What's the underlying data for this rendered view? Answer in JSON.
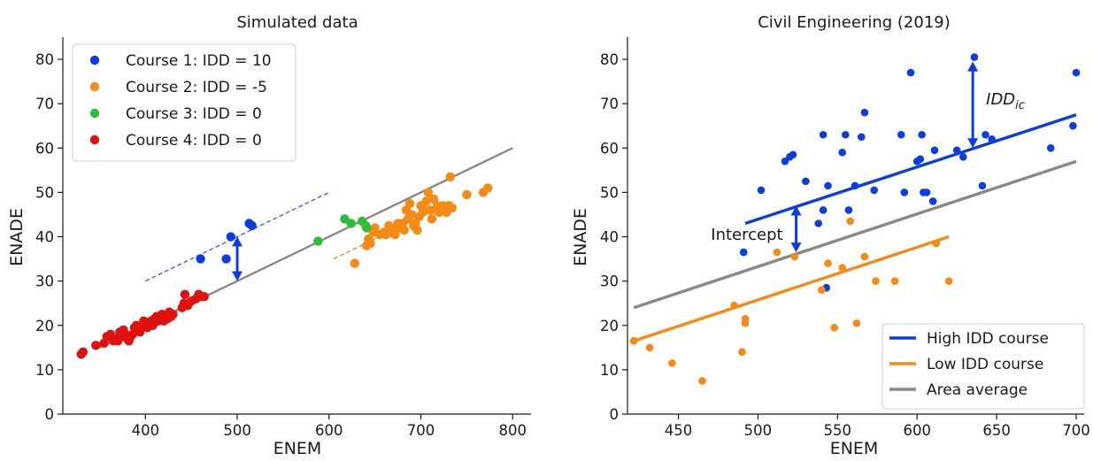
{
  "chart_data": [
    {
      "type": "scatter",
      "title": "Simulated data",
      "xlabel": "ENEM",
      "ylabel": "ENADE",
      "xlim": [
        310,
        820
      ],
      "ylim": [
        0,
        85
      ],
      "xticks": [
        400,
        500,
        600,
        700,
        800
      ],
      "yticks": [
        0,
        10,
        20,
        30,
        40,
        50,
        60,
        70,
        80
      ],
      "grid": false,
      "legend_position": "top-left",
      "series": [
        {
          "name": "Course 1: IDD = 10",
          "color": "#0b3de3",
          "points": [
            [
              460,
              35
            ],
            [
              488,
              35
            ],
            [
              493,
              40
            ],
            [
              513,
              43
            ],
            [
              516,
              42.5
            ]
          ]
        },
        {
          "name": "Course 2: IDD = -5",
          "color": "#f58a14",
          "points": [
            [
              628,
              34
            ],
            [
              641,
              38
            ],
            [
              643,
              39.5
            ],
            [
              645,
              38.5
            ],
            [
              648,
              41
            ],
            [
              650,
              42
            ],
            [
              655,
              40.5
            ],
            [
              660,
              41
            ],
            [
              662,
              40.5
            ],
            [
              665,
              42.5
            ],
            [
              667,
              41
            ],
            [
              670,
              42
            ],
            [
              672,
              40.5
            ],
            [
              675,
              43
            ],
            [
              677,
              42
            ],
            [
              680,
              43
            ],
            [
              682,
              41.5
            ],
            [
              684,
              46
            ],
            [
              686,
              44
            ],
            [
              688,
              47.5
            ],
            [
              690,
              45
            ],
            [
              692,
              42.5
            ],
            [
              694,
              43
            ],
            [
              696,
              41.5
            ],
            [
              698,
              44.5
            ],
            [
              700,
              47
            ],
            [
              702,
              45.5
            ],
            [
              704,
              46
            ],
            [
              706,
              48
            ],
            [
              708,
              50
            ],
            [
              710,
              46
            ],
            [
              712,
              44
            ],
            [
              714,
              48.5
            ],
            [
              716,
              46
            ],
            [
              718,
              47
            ],
            [
              720,
              45.5
            ],
            [
              722,
              46.5
            ],
            [
              724,
              47
            ],
            [
              726,
              46
            ],
            [
              728,
              45.5
            ],
            [
              730,
              47
            ],
            [
              732,
              53.5
            ],
            [
              734,
              46.5
            ],
            [
              750,
              49.5
            ],
            [
              768,
              50
            ],
            [
              773,
              51
            ]
          ]
        },
        {
          "name": "Course 3: IDD = 0",
          "color": "#2bc038",
          "points": [
            [
              588,
              39
            ],
            [
              617,
              44
            ],
            [
              624,
              43
            ],
            [
              636,
              43.5
            ],
            [
              640,
              42.5
            ],
            [
              641,
              42
            ]
          ]
        },
        {
          "name": "Course 4: IDD = 0",
          "color": "#e0110e",
          "points": [
            [
              330,
              13.5
            ],
            [
              332,
              14
            ],
            [
              346,
              15.5
            ],
            [
              355,
              16
            ],
            [
              358,
              17.5
            ],
            [
              362,
              18
            ],
            [
              365,
              16.5
            ],
            [
              368,
              17
            ],
            [
              370,
              16.5
            ],
            [
              372,
              18.5
            ],
            [
              374,
              17.5
            ],
            [
              376,
              19
            ],
            [
              378,
              18
            ],
            [
              380,
              17
            ],
            [
              382,
              16.5
            ],
            [
              384,
              17.5
            ],
            [
              386,
              18
            ],
            [
              388,
              19.5
            ],
            [
              390,
              20
            ],
            [
              392,
              19
            ],
            [
              394,
              18.5
            ],
            [
              396,
              20
            ],
            [
              398,
              21
            ],
            [
              400,
              20
            ],
            [
              402,
              19.5
            ],
            [
              404,
              20.5
            ],
            [
              406,
              21
            ],
            [
              408,
              20
            ],
            [
              410,
              21.5
            ],
            [
              412,
              22
            ],
            [
              414,
              21
            ],
            [
              416,
              21.5
            ],
            [
              418,
              22.5
            ],
            [
              420,
              21
            ],
            [
              422,
              22
            ],
            [
              424,
              21.5
            ],
            [
              426,
              23
            ],
            [
              428,
              22
            ],
            [
              430,
              22.5
            ],
            [
              440,
              24
            ],
            [
              442,
              25
            ],
            [
              443,
              27
            ],
            [
              446,
              24.5
            ],
            [
              450,
              25.5
            ],
            [
              455,
              26
            ],
            [
              458,
              27
            ],
            [
              460,
              26.5
            ],
            [
              464,
              26.5
            ]
          ]
        }
      ],
      "reference_lines": [
        {
          "style": "solid",
          "color": "#888888",
          "from": [
            350,
            15
          ],
          "to": [
            800,
            60
          ]
        },
        {
          "style": "dashed",
          "color": "#3b62f0",
          "from": [
            400,
            30
          ],
          "to": [
            600,
            50
          ]
        },
        {
          "style": "dashed",
          "color": "#f58a14",
          "from": [
            605,
            35
          ],
          "to": [
            735,
            48
          ]
        }
      ],
      "arrows": [
        {
          "color": "#0b3de3",
          "x": 500,
          "y_from": 30,
          "y_to": 40
        }
      ]
    },
    {
      "type": "scatter",
      "title": "Civil Engineering (2019)",
      "xlabel": "ENEM",
      "ylabel": "ENADE",
      "xlim": [
        418,
        705
      ],
      "ylim": [
        0,
        85
      ],
      "xticks": [
        450,
        500,
        550,
        600,
        650,
        700
      ],
      "yticks": [
        0,
        10,
        20,
        30,
        40,
        50,
        60,
        70,
        80
      ],
      "grid": false,
      "legend_position": "bottom-right",
      "series": [
        {
          "name": "High IDD course",
          "color": "#0b3de3",
          "points": [
            [
              491,
              36.5
            ],
            [
              502,
              50.5
            ],
            [
              517,
              57
            ],
            [
              520,
              58
            ],
            [
              522,
              58.5
            ],
            [
              530,
              52.5
            ],
            [
              538,
              43
            ],
            [
              541,
              63
            ],
            [
              541,
              46
            ],
            [
              543,
              28.5
            ],
            [
              544,
              51.5
            ],
            [
              553,
              59
            ],
            [
              555,
              63
            ],
            [
              557,
              46
            ],
            [
              561,
              51.5
            ],
            [
              565,
              62.5
            ],
            [
              567,
              68
            ],
            [
              573,
              50.5
            ],
            [
              590,
              63
            ],
            [
              592,
              50
            ],
            [
              596,
              77
            ],
            [
              600,
              57
            ],
            [
              602,
              57.5
            ],
            [
              603,
              63
            ],
            [
              604,
              50
            ],
            [
              606,
              50
            ],
            [
              610,
              48
            ],
            [
              611,
              59.5
            ],
            [
              625,
              59.5
            ],
            [
              629,
              58
            ],
            [
              636,
              80.5
            ],
            [
              641,
              51.5
            ],
            [
              643,
              63
            ],
            [
              647,
              62
            ],
            [
              684,
              60
            ],
            [
              698,
              65
            ],
            [
              700,
              77
            ]
          ]
        },
        {
          "name": "Low IDD course",
          "color": "#f58a14",
          "points": [
            [
              422,
              16.5
            ],
            [
              432,
              15
            ],
            [
              446,
              11.5
            ],
            [
              465,
              7.5
            ],
            [
              485,
              24.5
            ],
            [
              490,
              14
            ],
            [
              492,
              21.5
            ],
            [
              492,
              20.5
            ],
            [
              512,
              36.5
            ],
            [
              523,
              35.5
            ],
            [
              540,
              28
            ],
            [
              544,
              34
            ],
            [
              548,
              19.5
            ],
            [
              553,
              33
            ],
            [
              558,
              43.5
            ],
            [
              562,
              20.5
            ],
            [
              567,
              35.5
            ],
            [
              574,
              30
            ],
            [
              586,
              30
            ],
            [
              612,
              38.5
            ],
            [
              620,
              30
            ]
          ]
        }
      ],
      "fit_lines": [
        {
          "name": "High IDD course",
          "color": "#0b3de3",
          "from": [
            492,
            43
          ],
          "to": [
            700,
            67.5
          ]
        },
        {
          "name": "Low IDD course",
          "color": "#f58a14",
          "from": [
            422,
            16.5
          ],
          "to": [
            620,
            40
          ]
        },
        {
          "name": "Area average",
          "color": "#888888",
          "from": [
            422,
            24
          ],
          "to": [
            700,
            57
          ]
        }
      ],
      "arrows": [
        {
          "color": "#0b3de3",
          "x": 524,
          "y_from": 36.5,
          "y_to": 47,
          "label": "Intercept"
        },
        {
          "color": "#0b3de3",
          "x": 635,
          "y_from": 60,
          "y_to": 79.5,
          "label": "IDD",
          "label_sub": "ic"
        }
      ],
      "legend": [
        "High IDD course",
        "Low IDD course",
        "Area average"
      ]
    }
  ]
}
